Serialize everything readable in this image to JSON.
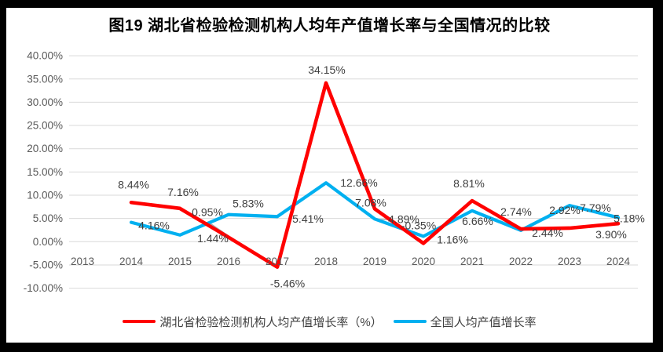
{
  "chart_data": {
    "type": "line",
    "title": "图19  湖北省检验检测机构人均年产值增长率与全国情况的比较",
    "categories": [
      "2013",
      "2014",
      "2015",
      "2016",
      "2017",
      "2018",
      "2019",
      "2020",
      "2021",
      "2022",
      "2023",
      "2024"
    ],
    "series": [
      {
        "name": "湖北省检验检测机构人均产值增长率（%）",
        "color": "#ff0000",
        "values": [
          null,
          8.44,
          7.16,
          0.95,
          -5.46,
          34.15,
          7.08,
          -0.35,
          8.81,
          2.74,
          2.92,
          3.9
        ],
        "labels": [
          "",
          "8.44%",
          "7.16%",
          "0.95%",
          "-5.46%",
          "34.15%",
          "7.08%",
          "-0.35%",
          "8.81%",
          "2.74%",
          "2.92%",
          "3.90%"
        ]
      },
      {
        "name": "全国人均产值增长率",
        "color": "#00b0f0",
        "values": [
          null,
          4.16,
          1.44,
          5.83,
          5.41,
          12.66,
          4.89,
          1.16,
          6.66,
          2.44,
          7.79,
          5.18
        ],
        "labels": [
          "",
          "4.16%",
          "1.44%",
          "5.83%",
          "5.41%",
          "12.66%",
          "4.89%",
          "1.16%",
          "6.66%",
          "2.44%",
          "7.79%",
          "5.18%"
        ]
      }
    ],
    "y_axis": {
      "ticks": [
        "40.00%",
        "35.00%",
        "30.00%",
        "25.00%",
        "20.00%",
        "15.00%",
        "10.00%",
        "5.00%",
        "0.00%",
        "-5.00%",
        "-10.00%"
      ],
      "values": [
        40,
        35,
        30,
        25,
        20,
        15,
        10,
        5,
        0,
        -5,
        -10
      ],
      "min": -10,
      "max": 40
    },
    "grid": true,
    "legend_position": "bottom"
  }
}
